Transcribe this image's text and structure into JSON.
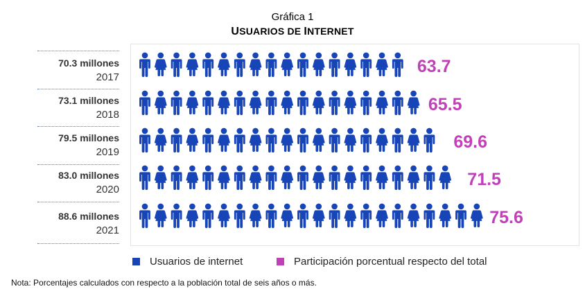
{
  "title": "Gráfica 1",
  "subtitle_first": "U",
  "subtitle_rest": "SUARIOS DE ",
  "subtitle_first2": "I",
  "subtitle_rest2": "NTERNET",
  "colors": {
    "icon": "#1745b8",
    "percent": "#c040b8",
    "legend_users": "#1745b8",
    "legend_pct": "#c040b8"
  },
  "icon_name": "person-icon",
  "legend": {
    "users": "Usuarios de internet",
    "percent": "Participación porcentual respecto del total"
  },
  "note": "Nota: Porcentajes calculados con respecto a la población total de seis años o más.",
  "chart_data": {
    "type": "bar",
    "categories": [
      "2017",
      "2018",
      "2019",
      "2020",
      "2021"
    ],
    "amount_labels": [
      "70.3 millones",
      "73.1 millones",
      "79.5 millones",
      "83.0 millones",
      "88.6 millones"
    ],
    "series": [
      {
        "name": "Usuarios de internet",
        "values": [
          70.3,
          73.1,
          79.5,
          83.0,
          88.6
        ],
        "unit": "millones"
      },
      {
        "name": "Participación porcentual respecto del total",
        "values": [
          63.7,
          65.5,
          69.6,
          71.5,
          75.6
        ]
      }
    ],
    "percent_labels": [
      "63.7",
      "65.5",
      "69.6",
      "71.5",
      "75.6"
    ]
  }
}
